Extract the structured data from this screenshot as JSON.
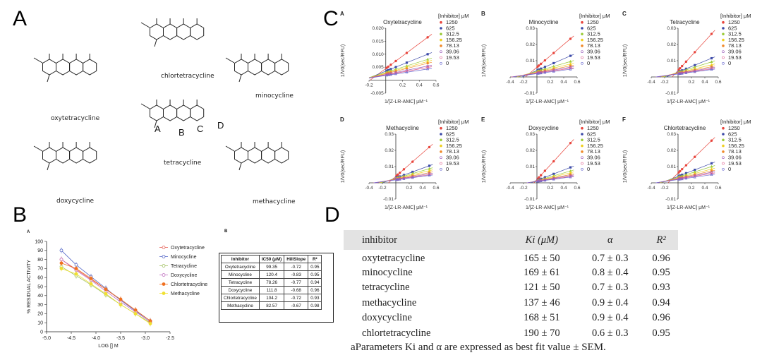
{
  "panels": {
    "a": "A",
    "b": "B",
    "c": "C",
    "d": "D"
  },
  "panel_a": {
    "molecules": [
      "oxytetracycline",
      "chlortetracycline",
      "minocycline",
      "tetracycline",
      "doxycycline",
      "methacycline"
    ],
    "ring_labels": [
      "A",
      "B",
      "C",
      "D"
    ]
  },
  "chart_data": [
    {
      "id": "C-A",
      "type": "scatter",
      "panel_label": "A",
      "title": "Oxytetracycline",
      "xlabel": "1/[Z-LR-AMC] μM⁻¹",
      "ylabel": "1/V0(sec/RFU)",
      "xlim": [
        -0.2,
        0.6
      ],
      "ylim": [
        -0.005,
        0.02
      ],
      "xticks": [
        "-0.2",
        "0.2",
        "0.4",
        "0.6"
      ],
      "yticks": [
        "-0.005",
        "0.005",
        "0.010",
        "0.015",
        "0.020"
      ],
      "legend_title": "[Inhibitor] μM",
      "series": [
        {
          "name": "1250",
          "slope": 0.024,
          "intercept": 0.0045
        },
        {
          "name": "625",
          "slope": 0.013,
          "intercept": 0.0035
        },
        {
          "name": "312.5",
          "slope": 0.01,
          "intercept": 0.003
        },
        {
          "name": "156.25",
          "slope": 0.009,
          "intercept": 0.0027
        },
        {
          "name": "78.13",
          "slope": 0.008,
          "intercept": 0.0025
        },
        {
          "name": "39.06",
          "slope": 0.0065,
          "intercept": 0.0022
        },
        {
          "name": "19.53",
          "slope": 0.0058,
          "intercept": 0.002
        },
        {
          "name": "0",
          "slope": 0.005,
          "intercept": 0.0018
        }
      ],
      "x_points": [
        0.01,
        0.03,
        0.06,
        0.12,
        0.25,
        0.5
      ]
    },
    {
      "id": "C-B",
      "type": "scatter",
      "panel_label": "B",
      "title": "Minocycline",
      "xlabel": "1/[Z-LR-AMC] μM⁻¹",
      "ylabel": "1/V0(sec/RFU)",
      "xlim": [
        -0.4,
        0.6
      ],
      "ylim": [
        -0.01,
        0.03
      ],
      "xticks": [
        "-0.4",
        "-0.2",
        "0.2",
        "0.4",
        "0.6"
      ],
      "yticks": [
        "-0.01",
        "0.01",
        "0.02",
        "0.03"
      ],
      "legend_title": "[Inhibitor] μM",
      "series": [
        {
          "name": "1250",
          "slope": 0.035,
          "intercept": 0.006
        },
        {
          "name": "625",
          "slope": 0.018,
          "intercept": 0.004
        },
        {
          "name": "312.5",
          "slope": 0.012,
          "intercept": 0.0035
        },
        {
          "name": "156.25",
          "slope": 0.01,
          "intercept": 0.003
        },
        {
          "name": "78.13",
          "slope": 0.008,
          "intercept": 0.0028
        },
        {
          "name": "39.06",
          "slope": 0.007,
          "intercept": 0.0025
        },
        {
          "name": "19.53",
          "slope": 0.006,
          "intercept": 0.0023
        },
        {
          "name": "0",
          "slope": 0.0055,
          "intercept": 0.002
        }
      ],
      "x_points": [
        0.01,
        0.03,
        0.06,
        0.12,
        0.25,
        0.5
      ]
    },
    {
      "id": "C-C",
      "type": "scatter",
      "panel_label": "C",
      "title": "Tetracycline",
      "xlabel": "1/[Z-LR-AMC] μM⁻¹",
      "ylabel": "1/V0(sec/RFU)",
      "xlim": [
        -0.4,
        0.6
      ],
      "ylim": [
        -0.01,
        0.03
      ],
      "xticks": [
        "-0.4",
        "-0.2",
        "0.2",
        "0.4",
        "0.6"
      ],
      "yticks": [
        "-0.01",
        "0.01",
        "0.02",
        "0.03"
      ],
      "legend_title": "[Inhibitor] μM",
      "series": [
        {
          "name": "1250",
          "slope": 0.045,
          "intercept": 0.004
        },
        {
          "name": "625",
          "slope": 0.017,
          "intercept": 0.003
        },
        {
          "name": "312.5",
          "slope": 0.013,
          "intercept": 0.0028
        },
        {
          "name": "156.25",
          "slope": 0.01,
          "intercept": 0.0025
        },
        {
          "name": "78.13",
          "slope": 0.008,
          "intercept": 0.0023
        },
        {
          "name": "39.06",
          "slope": 0.007,
          "intercept": 0.0021
        },
        {
          "name": "19.53",
          "slope": 0.006,
          "intercept": 0.002
        },
        {
          "name": "0",
          "slope": 0.0055,
          "intercept": 0.0018
        }
      ],
      "x_points": [
        0.01,
        0.03,
        0.06,
        0.12,
        0.25,
        0.5
      ]
    },
    {
      "id": "C-D",
      "type": "scatter",
      "panel_label": "D",
      "title": "Methacycline",
      "xlabel": "1/[Z-LR-AMC] μM⁻¹",
      "ylabel": "1/V0(sec/RFU)",
      "xlim": [
        -0.4,
        0.6
      ],
      "ylim": [
        -0.01,
        0.03
      ],
      "xticks": [
        "-0.4",
        "-0.2",
        "0.2",
        "0.4",
        "0.6"
      ],
      "yticks": [
        "-0.01",
        "0.01",
        "0.02",
        "0.03"
      ],
      "legend_title": "[Inhibitor] μM",
      "series": [
        {
          "name": "1250",
          "slope": 0.036,
          "intercept": 0.004
        },
        {
          "name": "625",
          "slope": 0.015,
          "intercept": 0.003
        },
        {
          "name": "312.5",
          "slope": 0.012,
          "intercept": 0.0027
        },
        {
          "name": "156.25",
          "slope": 0.01,
          "intercept": 0.0025
        },
        {
          "name": "78.13",
          "slope": 0.008,
          "intercept": 0.0023
        },
        {
          "name": "39.06",
          "slope": 0.007,
          "intercept": 0.0021
        },
        {
          "name": "19.53",
          "slope": 0.006,
          "intercept": 0.002
        },
        {
          "name": "0",
          "slope": 0.0055,
          "intercept": 0.0018
        }
      ],
      "x_points": [
        0.01,
        0.03,
        0.06,
        0.12,
        0.25,
        0.5
      ]
    },
    {
      "id": "C-E",
      "type": "scatter",
      "panel_label": "E",
      "title": "Doxycycline",
      "xlabel": "1/[Z-LR-AMC] μM⁻¹",
      "ylabel": "1/V0(sec/RFU)",
      "xlim": [
        -0.4,
        0.6
      ],
      "ylim": [
        -0.01,
        0.03
      ],
      "xticks": [
        "-0.4",
        "-0.2",
        "0.2",
        "0.4",
        "0.6"
      ],
      "yticks": [
        "-0.01",
        "0.01",
        "0.02",
        "0.03"
      ],
      "legend_title": "[Inhibitor] μM",
      "series": [
        {
          "name": "1250",
          "slope": 0.045,
          "intercept": 0.002
        },
        {
          "name": "625",
          "slope": 0.016,
          "intercept": 0.0015
        },
        {
          "name": "312.5",
          "slope": 0.012,
          "intercept": 0.0013
        },
        {
          "name": "156.25",
          "slope": 0.01,
          "intercept": 0.0012
        },
        {
          "name": "78.13",
          "slope": 0.008,
          "intercept": 0.0011
        },
        {
          "name": "39.06",
          "slope": 0.007,
          "intercept": 0.001
        },
        {
          "name": "19.53",
          "slope": 0.006,
          "intercept": 0.0009
        },
        {
          "name": "0",
          "slope": 0.0055,
          "intercept": 0.0008
        }
      ],
      "x_points": [
        0.01,
        0.03,
        0.06,
        0.12,
        0.25,
        0.5
      ]
    },
    {
      "id": "C-F",
      "type": "scatter",
      "panel_label": "F",
      "title": "Chlortetracycline",
      "xlabel": "1/[Z-LR-AMC] μM⁻¹",
      "ylabel": "1/V0(sec/RFU)",
      "xlim": [
        -0.4,
        0.6
      ],
      "ylim": [
        -0.01,
        0.03
      ],
      "xticks": [
        "-0.4",
        "-0.2",
        "0.2",
        "0.4",
        "0.6"
      ],
      "yticks": [
        "-0.01",
        "0.01",
        "0.02",
        "0.03"
      ],
      "legend_title": "[Inhibitor] μM",
      "series": [
        {
          "name": "1250",
          "slope": 0.04,
          "intercept": 0.006
        },
        {
          "name": "625",
          "slope": 0.016,
          "intercept": 0.004
        },
        {
          "name": "312.5",
          "slope": 0.013,
          "intercept": 0.0035
        },
        {
          "name": "156.25",
          "slope": 0.011,
          "intercept": 0.003
        },
        {
          "name": "78.13",
          "slope": 0.009,
          "intercept": 0.0028
        },
        {
          "name": "39.06",
          "slope": 0.008,
          "intercept": 0.0025
        },
        {
          "name": "19.53",
          "slope": 0.007,
          "intercept": 0.0023
        },
        {
          "name": "0",
          "slope": 0.006,
          "intercept": 0.002
        }
      ],
      "x_points": [
        0.01,
        0.03,
        0.06,
        0.12,
        0.25,
        0.5
      ]
    },
    {
      "id": "B-A",
      "type": "line",
      "panel_label": "A",
      "title": "",
      "xlabel": "LOG [] M",
      "ylabel": "% RESIDUAL ACTIVITY",
      "xlim": [
        -5.0,
        -2.5
      ],
      "ylim": [
        0,
        100
      ],
      "xticks": [
        "-5.0",
        "-4.5",
        "-4.0",
        "-3.5",
        "-3.0",
        "-2.5"
      ],
      "yticks": [
        "0",
        "10",
        "20",
        "30",
        "40",
        "50",
        "60",
        "70",
        "80",
        "90",
        "100"
      ],
      "x": [
        -4.7,
        -4.4,
        -4.1,
        -3.8,
        -3.5,
        -3.2,
        -2.9
      ],
      "series": [
        {
          "name": "Oxytetracycline",
          "values": [
            80,
            69,
            58,
            47,
            35,
            24,
            12
          ]
        },
        {
          "name": "Minocycline",
          "values": [
            90,
            74,
            61,
            48,
            35,
            23,
            12
          ]
        },
        {
          "name": "Tetracycline",
          "values": [
            72,
            62,
            52,
            41,
            30,
            20,
            10
          ]
        },
        {
          "name": "Doxycycline",
          "values": [
            80,
            68,
            57,
            45,
            33,
            22,
            11
          ]
        },
        {
          "name": "Chlortetracycline",
          "values": [
            76,
            70,
            59,
            47,
            36,
            24,
            12
          ]
        },
        {
          "name": "Methacycline",
          "values": [
            70,
            64,
            53,
            42,
            30,
            20,
            9
          ]
        }
      ]
    }
  ],
  "panel_b": {
    "table_label": "B",
    "headers": [
      "Inhibitor",
      "IC50 (μM)",
      "HillSlope",
      "R²"
    ],
    "rows": [
      [
        "Oxytetracycline",
        "99.35",
        "-0.72",
        "0.95"
      ],
      [
        "Minocycline",
        "120.4",
        "-0.83",
        "0.95"
      ],
      [
        "Tetracycline",
        "78.26",
        "-0.77",
        "0.94"
      ],
      [
        "Doxycycline",
        "111.8",
        "-0.68",
        "0.96"
      ],
      [
        "Chlortetracycline",
        "104.2",
        "-0.72",
        "0.93"
      ],
      [
        "Methacycline",
        "82.57",
        "-0.67",
        "0.98"
      ]
    ]
  },
  "panel_d": {
    "headers": [
      "inhibitor",
      "Ki (μM)",
      "α",
      "R²"
    ],
    "rows": [
      [
        "oxytetracycline",
        "165 ± 50",
        "0.7 ± 0.3",
        "0.96"
      ],
      [
        "minocycline",
        "169 ± 61",
        "0.8 ± 0.4",
        "0.95"
      ],
      [
        "tetracycline",
        "121 ± 50",
        "0.7 ± 0.3",
        "0.93"
      ],
      [
        "methacycline",
        "137 ± 46",
        "0.9 ± 0.4",
        "0.94"
      ],
      [
        "doxycycline",
        "168 ± 51",
        "0.9 ± 0.4",
        "0.96"
      ],
      [
        "chlortetracycline",
        "190 ± 70",
        "0.6 ± 0.3",
        "0.95"
      ]
    ],
    "footnote": "aParameters Ki and α are expressed as best fit value ± SEM."
  },
  "colors": {
    "series": [
      "#e8453c",
      "#3c4aa8",
      "#9ccc3a",
      "#f0d020",
      "#f08a2a",
      "#9a5ab8",
      "#e05a8a",
      "#6a6ad0"
    ],
    "b_series": [
      "#e8655c",
      "#5568c8",
      "#a0c060",
      "#c070c0",
      "#f07020",
      "#f0e030"
    ],
    "header_bg": "#e3e3e3"
  }
}
